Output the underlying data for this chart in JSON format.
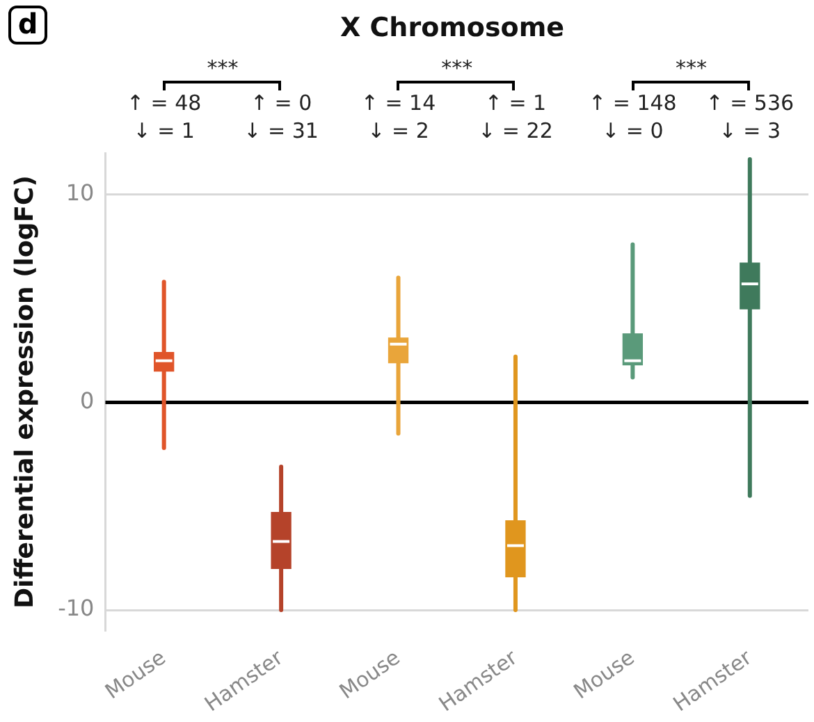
{
  "chart_data": {
    "type": "box",
    "title": "X Chromosome",
    "ylabel": "Differential expression (logFC)",
    "categories": [
      "Mouse",
      "Hamster",
      "Mouse",
      "Hamster",
      "Mouse",
      "Hamster"
    ],
    "colors": [
      "#e0552a",
      "#b5432a",
      "#e9a53a",
      "#e0961e",
      "#5a9a7a",
      "#3f7a5c"
    ],
    "boxes": [
      {
        "low": -2.2,
        "q1": 1.5,
        "median": 2.0,
        "q3": 2.4,
        "high": 5.8
      },
      {
        "low": -10,
        "q1": -8.0,
        "median": -6.7,
        "q3": -5.3,
        "high": -3.1
      },
      {
        "low": -1.5,
        "q1": 1.9,
        "median": 2.8,
        "q3": 3.1,
        "high": 6.0
      },
      {
        "low": -10,
        "q1": -8.4,
        "median": -6.9,
        "q3": -5.7,
        "high": 2.2
      },
      {
        "low": 1.2,
        "q1": 1.8,
        "median": 2.0,
        "q3": 3.3,
        "high": 7.6
      },
      {
        "low": -4.5,
        "q1": 4.5,
        "median": 5.7,
        "q3": 6.7,
        "high": 11.7
      }
    ],
    "ylim": [
      -11,
      12
    ],
    "yticks": [
      -10,
      0,
      10
    ],
    "grid": "y",
    "legend": false,
    "ref_lines": [
      {
        "axis": "y",
        "value": 0,
        "color": "#000000"
      }
    ],
    "annotations": [
      "d",
      "***",
      "↑ = 48",
      "↓ = 1",
      "↑ = 0",
      "↓ = 31",
      "***",
      "↑ = 14",
      "↓ = 2",
      "↑ = 1",
      "↓ = 22",
      "***",
      "↑ = 148",
      "↓ = 0",
      "↑ = 536",
      "↓ = 3"
    ]
  }
}
